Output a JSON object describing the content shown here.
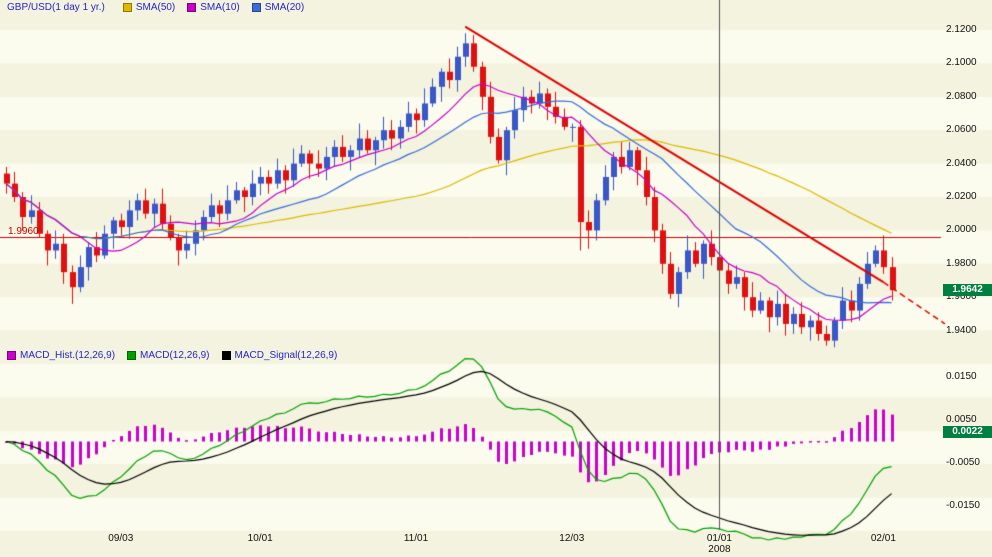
{
  "price_legend": {
    "symbol": "GBP/USD(1 day  1 yr.)",
    "items": [
      {
        "label": "SMA(50)",
        "color": "#dfb900"
      },
      {
        "label": "SMA(10)",
        "color": "#c800c8"
      },
      {
        "label": "SMA(20)",
        "color": "#3c6bd8"
      }
    ]
  },
  "macd_legend": {
    "items": [
      {
        "label": "MACD_Hist.(12,26,9)",
        "color": "#cc00cc"
      },
      {
        "label": "MACD(12,26,9)",
        "color": "#00a000"
      },
      {
        "label": "MACD_Signal(12,26,9)",
        "color": "#000000"
      }
    ]
  },
  "badges": {
    "price": {
      "label": "1.9642",
      "bg": "#008040"
    },
    "macd": {
      "label": "0.0022",
      "bg": "#008040"
    }
  },
  "colors": {
    "stripe_dark": "#f3f3df",
    "stripe_light": "#fbfbee",
    "candle_up": "#3a57c8",
    "candle_down": "#e01010",
    "legend_text": "#2424cc",
    "axis_text": "#111111",
    "year_divider": "#555555"
  },
  "chart_data": {
    "type": "candlestick",
    "title": "GBP/USD(1 day  1 yr.)",
    "overlays": [
      {
        "name": "SMA(50)",
        "period": 50,
        "color": "#dfb900"
      },
      {
        "name": "SMA(10)",
        "period": 10,
        "color": "#c800c8"
      },
      {
        "name": "SMA(20)",
        "period": 20,
        "color": "#3c6bd8"
      }
    ],
    "candles": [
      [
        2.034,
        2.038,
        2.022,
        2.028
      ],
      [
        2.028,
        2.035,
        2.017,
        2.02
      ],
      [
        2.02,
        2.023,
        2.0,
        2.008
      ],
      [
        2.008,
        2.021,
        2.004,
        2.012
      ],
      [
        2.012,
        2.017,
        1.996,
        1.998
      ],
      [
        1.998,
        2.0,
        1.979,
        1.988
      ],
      [
        1.988,
        2.0,
        1.983,
        1.992
      ],
      [
        1.992,
        1.998,
        1.968,
        1.975
      ],
      [
        1.975,
        1.979,
        1.956,
        1.966
      ],
      [
        1.966,
        1.985,
        1.963,
        1.978
      ],
      [
        1.978,
        1.993,
        1.97,
        1.99
      ],
      [
        1.99,
        1.999,
        1.981,
        1.985
      ],
      [
        1.985,
        2.003,
        1.983,
        1.998
      ],
      [
        1.998,
        2.008,
        1.989,
        2.006
      ],
      [
        2.006,
        2.01,
        1.997,
        2.002
      ],
      [
        2.002,
        2.018,
        1.995,
        2.012
      ],
      [
        2.012,
        2.022,
        2.006,
        2.018
      ],
      [
        2.018,
        2.025,
        2.007,
        2.01
      ],
      [
        2.01,
        2.019,
        2.002,
        2.016
      ],
      [
        2.016,
        2.025,
        2.0,
        2.004
      ],
      [
        2.004,
        2.009,
        1.994,
        1.996
      ],
      [
        1.996,
        1.998,
        1.979,
        1.988
      ],
      [
        1.988,
        2.0,
        1.983,
        1.992
      ],
      [
        1.992,
        2.006,
        1.985,
        2.0
      ],
      [
        2.0,
        2.012,
        1.994,
        2.008
      ],
      [
        2.008,
        2.022,
        2.005,
        2.015
      ],
      [
        2.015,
        2.018,
        2.002,
        2.01
      ],
      [
        2.01,
        2.027,
        2.006,
        2.018
      ],
      [
        2.018,
        2.029,
        2.016,
        2.024
      ],
      [
        2.024,
        2.026,
        2.011,
        2.02
      ],
      [
        2.02,
        2.036,
        2.015,
        2.028
      ],
      [
        2.028,
        2.038,
        2.021,
        2.032
      ],
      [
        2.032,
        2.036,
        2.022,
        2.028
      ],
      [
        2.028,
        2.043,
        2.025,
        2.036
      ],
      [
        2.036,
        2.039,
        2.022,
        2.03
      ],
      [
        2.03,
        2.049,
        2.026,
        2.04
      ],
      [
        2.04,
        2.051,
        2.038,
        2.046
      ],
      [
        2.046,
        2.048,
        2.031,
        2.04
      ],
      [
        2.04,
        2.048,
        2.032,
        2.037
      ],
      [
        2.037,
        2.05,
        2.03,
        2.044
      ],
      [
        2.044,
        2.054,
        2.038,
        2.05
      ],
      [
        2.05,
        2.057,
        2.041,
        2.044
      ],
      [
        2.044,
        2.051,
        2.036,
        2.048
      ],
      [
        2.048,
        2.064,
        2.044,
        2.055
      ],
      [
        2.055,
        2.06,
        2.046,
        2.048
      ],
      [
        2.048,
        2.056,
        2.039,
        2.054
      ],
      [
        2.054,
        2.068,
        2.049,
        2.06
      ],
      [
        2.06,
        2.066,
        2.048,
        2.055
      ],
      [
        2.055,
        2.066,
        2.049,
        2.062
      ],
      [
        2.062,
        2.077,
        2.059,
        2.07
      ],
      [
        2.07,
        2.073,
        2.058,
        2.066
      ],
      [
        2.066,
        2.085,
        2.062,
        2.076
      ],
      [
        2.076,
        2.091,
        2.074,
        2.086
      ],
      [
        2.086,
        2.097,
        2.077,
        2.095
      ],
      [
        2.095,
        2.103,
        2.085,
        2.09
      ],
      [
        2.09,
        2.11,
        2.083,
        2.104
      ],
      [
        2.104,
        2.118,
        2.098,
        2.112
      ],
      [
        2.112,
        2.117,
        2.095,
        2.098
      ],
      [
        2.098,
        2.101,
        2.072,
        2.08
      ],
      [
        2.08,
        2.089,
        2.052,
        2.056
      ],
      [
        2.056,
        2.061,
        2.04,
        2.042
      ],
      [
        2.042,
        2.062,
        2.033,
        2.06
      ],
      [
        2.06,
        2.08,
        2.055,
        2.072
      ],
      [
        2.072,
        2.086,
        2.065,
        2.08
      ],
      [
        2.08,
        2.084,
        2.07,
        2.076
      ],
      [
        2.076,
        2.089,
        2.073,
        2.082
      ],
      [
        2.082,
        2.085,
        2.066,
        2.074
      ],
      [
        2.074,
        2.083,
        2.064,
        2.068
      ],
      [
        2.068,
        2.073,
        2.06,
        2.062
      ],
      [
        2.062,
        2.064,
        2.053,
        2.062
      ],
      [
        2.062,
        2.066,
        1.988,
        2.005
      ],
      [
        2.005,
        2.012,
        1.989,
        2.0
      ],
      [
        2.0,
        2.022,
        1.994,
        2.018
      ],
      [
        2.018,
        2.039,
        2.015,
        2.032
      ],
      [
        2.032,
        2.047,
        2.024,
        2.044
      ],
      [
        2.044,
        2.053,
        2.034,
        2.038
      ],
      [
        2.038,
        2.053,
        2.036,
        2.048
      ],
      [
        2.048,
        2.05,
        2.027,
        2.036
      ],
      [
        2.036,
        2.044,
        2.015,
        2.02
      ],
      [
        2.02,
        2.026,
        1.993,
        2.0
      ],
      [
        2.0,
        2.004,
        1.974,
        1.98
      ],
      [
        1.98,
        1.987,
        1.959,
        1.962
      ],
      [
        1.962,
        1.978,
        1.954,
        1.975
      ],
      [
        1.975,
        1.997,
        1.971,
        1.988
      ],
      [
        1.988,
        1.993,
        1.978,
        1.98
      ],
      [
        1.98,
        1.994,
        1.971,
        1.992
      ],
      [
        1.992,
        2.0,
        1.979,
        1.984
      ],
      [
        1.984,
        1.99,
        1.969,
        1.976
      ],
      [
        1.976,
        1.98,
        1.962,
        1.968
      ],
      [
        1.968,
        1.979,
        1.965,
        1.972
      ],
      [
        1.972,
        1.975,
        1.952,
        1.96
      ],
      [
        1.96,
        1.969,
        1.948,
        1.952
      ],
      [
        1.952,
        1.963,
        1.95,
        1.958
      ],
      [
        1.958,
        1.96,
        1.939,
        1.948
      ],
      [
        1.948,
        1.964,
        1.943,
        1.956
      ],
      [
        1.956,
        1.962,
        1.937,
        1.944
      ],
      [
        1.944,
        1.954,
        1.938,
        1.95
      ],
      [
        1.95,
        1.957,
        1.938,
        1.942
      ],
      [
        1.942,
        1.949,
        1.934,
        1.946
      ],
      [
        1.946,
        1.951,
        1.934,
        1.938
      ],
      [
        1.938,
        1.943,
        1.931,
        1.934
      ],
      [
        1.934,
        1.948,
        1.93,
        1.946
      ],
      [
        1.946,
        1.966,
        1.941,
        1.958
      ],
      [
        1.958,
        1.964,
        1.945,
        1.952
      ],
      [
        1.952,
        1.972,
        1.946,
        1.968
      ],
      [
        1.968,
        1.987,
        1.965,
        1.98
      ],
      [
        1.98,
        1.991,
        1.978,
        1.988
      ],
      [
        1.988,
        1.997,
        1.974,
        1.978
      ],
      [
        1.978,
        1.984,
        1.958,
        1.9642
      ]
    ],
    "price_axis": {
      "ticks": [
        {
          "v": 2.12,
          "label": "2.1200"
        },
        {
          "v": 2.1,
          "label": "2.1000"
        },
        {
          "v": 2.08,
          "label": "2.0800"
        },
        {
          "v": 2.06,
          "label": "2.0600"
        },
        {
          "v": 2.04,
          "label": "2.0400"
        },
        {
          "v": 2.02,
          "label": "2.0200"
        },
        {
          "v": 2.0,
          "label": "2.0000"
        },
        {
          "v": 1.98,
          "label": "1.9800"
        },
        {
          "v": 1.96,
          "label": "1.9600"
        },
        {
          "v": 1.94,
          "label": "1.9400"
        }
      ],
      "last": {
        "v": 1.9642,
        "label": "1.9642"
      }
    },
    "hline": {
      "v": 1.996,
      "label": "1.9960",
      "color": "#cc0000"
    },
    "trendline": {
      "color": "#e00000",
      "solid": [
        [
          56,
          2.122
        ],
        [
          107,
          1.969
        ]
      ],
      "dashed": [
        [
          107,
          1.969
        ],
        [
          114.5,
          1.944
        ]
      ]
    },
    "x_axis": {
      "ticks": [
        {
          "i": 14,
          "label": "09/03"
        },
        {
          "i": 31,
          "label": "10/01"
        },
        {
          "i": 50,
          "label": "11/01"
        },
        {
          "i": 69,
          "label": "12/03"
        },
        {
          "i": 87,
          "label": "01/01",
          "sublabel": "2008"
        },
        {
          "i": 107,
          "label": "02/01"
        }
      ],
      "year_divider_i": 87
    },
    "macd": {
      "fast": 12,
      "slow": 26,
      "signal_period": 9,
      "hist_color": "#cc00cc",
      "line_color": "#00a000",
      "signal_color": "#000000",
      "axis_ticks": [
        {
          "v": 0.015,
          "label": "0.0150"
        },
        {
          "v": 0.005,
          "label": "0.0050"
        },
        {
          "v": -0.005,
          "label": "-0.0050"
        },
        {
          "v": -0.015,
          "label": "-0.0150"
        }
      ],
      "last": {
        "v": 0.0022,
        "label": "0.0022"
      }
    }
  }
}
